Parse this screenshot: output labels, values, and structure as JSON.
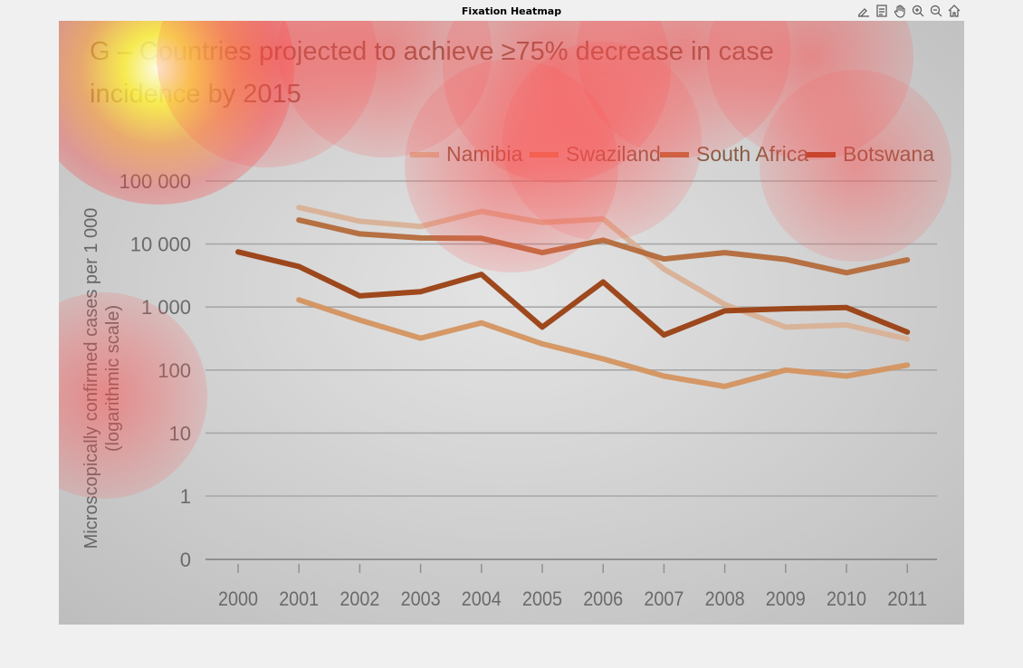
{
  "figure": {
    "title": "Fixation Heatmap"
  },
  "toolbar": {
    "buttons": [
      {
        "name": "edit-plot-button",
        "icon": "pencil-plot-icon"
      },
      {
        "name": "insert-legend-button",
        "icon": "legend-icon"
      },
      {
        "name": "pan-button",
        "icon": "hand-icon"
      },
      {
        "name": "zoom-in-button",
        "icon": "zoom-in-icon"
      },
      {
        "name": "zoom-out-button",
        "icon": "zoom-out-icon"
      },
      {
        "name": "restore-view-button",
        "icon": "home-icon"
      }
    ]
  },
  "chart_data": {
    "type": "line",
    "title_line1": "G – Countries projected to achieve ≥75% decrease in case",
    "title_line2": "incidence by 2015",
    "ylabel_line1": "Microscopically confirmed cases per 1 000",
    "ylabel_line2": "(logarithmic scale)",
    "xlabel": "",
    "y_scale": "log",
    "y_ticks": [
      0,
      1,
      10,
      100,
      1000,
      10000,
      100000
    ],
    "y_tick_labels": [
      "0",
      "1",
      "10",
      "100",
      "1 000",
      "10 000",
      "100 000"
    ],
    "x": [
      "2000",
      "2001",
      "2002",
      "2003",
      "2004",
      "2005",
      "2006",
      "2007",
      "2008",
      "2009",
      "2010",
      "2011"
    ],
    "grid": true,
    "legend_position": "top-right",
    "series": [
      {
        "name": "Namibia",
        "color": "#d9b196",
        "values": [
          null,
          38000,
          23000,
          19000,
          33000,
          22000,
          25000,
          4000,
          1100,
          480,
          520,
          310
        ]
      },
      {
        "name": "Swaziland",
        "color": "#d4945f",
        "values": [
          null,
          1300,
          620,
          320,
          560,
          260,
          150,
          80,
          55,
          100,
          80,
          120
        ]
      },
      {
        "name": "South Africa",
        "color": "#b46a3a",
        "values": [
          null,
          24000,
          14500,
          12500,
          12300,
          7300,
          11500,
          5800,
          7300,
          5700,
          3500,
          5600
        ]
      },
      {
        "name": "Botswana",
        "color": "#9a3f12",
        "values": [
          7500,
          4400,
          1500,
          1750,
          3300,
          480,
          2500,
          360,
          870,
          940,
          980,
          400
        ]
      }
    ],
    "heatmap_overlay": {
      "colormap": "jet-on-gray",
      "hotspots": [
        {
          "cx": 0.11,
          "cy": 0.08,
          "intensity": 1.0
        },
        {
          "cx": 0.23,
          "cy": 0.06,
          "intensity": 0.65
        },
        {
          "cx": 0.36,
          "cy": 0.05,
          "intensity": 0.6
        },
        {
          "cx": 0.55,
          "cy": 0.08,
          "intensity": 0.7
        },
        {
          "cx": 0.69,
          "cy": 0.05,
          "intensity": 0.6
        },
        {
          "cx": 0.83,
          "cy": 0.06,
          "intensity": 0.55
        },
        {
          "cx": 0.5,
          "cy": 0.24,
          "intensity": 0.6
        },
        {
          "cx": 0.6,
          "cy": 0.2,
          "intensity": 0.5
        },
        {
          "cx": 0.88,
          "cy": 0.24,
          "intensity": 0.45
        },
        {
          "cx": 0.05,
          "cy": 0.62,
          "intensity": 0.55
        }
      ]
    }
  }
}
